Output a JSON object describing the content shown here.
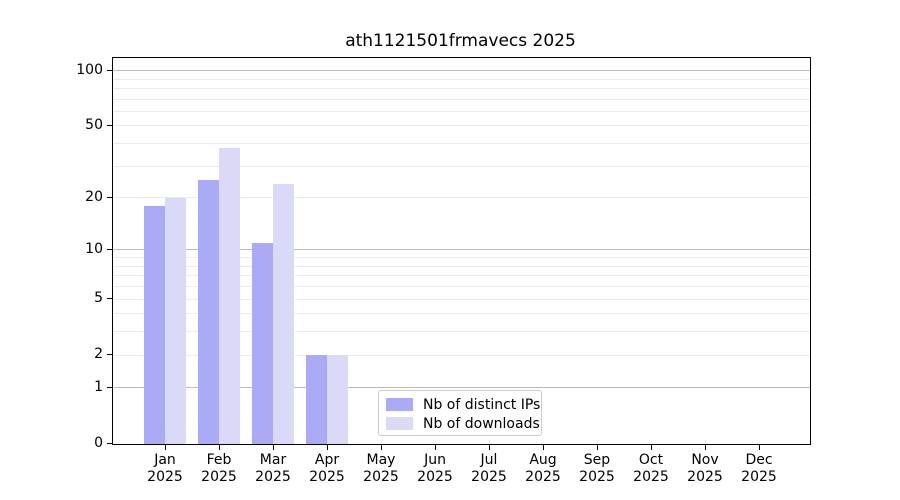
{
  "chart_data": {
    "type": "bar",
    "title": "ath1121501frmavecs 2025",
    "categories": [
      "Jan",
      "Feb",
      "Mar",
      "Apr",
      "May",
      "Jun",
      "Jul",
      "Aug",
      "Sep",
      "Oct",
      "Nov",
      "Dec"
    ],
    "x_tick_year": "2025",
    "series": [
      {
        "name": "Nb of distinct IPs",
        "color": "#aaaaf5",
        "values": [
          18,
          25,
          11,
          2,
          0,
          0,
          0,
          0,
          0,
          0,
          0,
          0
        ]
      },
      {
        "name": "Nb of downloads",
        "color": "#dadaf8",
        "values": [
          20,
          38,
          24,
          2,
          0,
          0,
          0,
          0,
          0,
          0,
          0,
          0
        ]
      }
    ],
    "xlabel": "",
    "ylabel": "",
    "y_axis": {
      "scale": "log1p",
      "ticks": [
        0,
        1,
        2,
        5,
        10,
        20,
        50,
        100
      ],
      "minor_gridlines": [
        2,
        3,
        4,
        5,
        6,
        7,
        8,
        9,
        20,
        30,
        40,
        50,
        60,
        70,
        80,
        90
      ],
      "major_gridlines": [
        1,
        10,
        100
      ],
      "ylim": [
        0,
        117
      ]
    },
    "grid": true,
    "legend_position": "lower center"
  },
  "colors": {
    "background": "#ffffff",
    "bar_distinct_ips": "#aaaaf5",
    "bar_downloads": "#dadaf8",
    "gridline_minor": "#ebebeb",
    "gridline_major": "#bdbdbd",
    "axis_spine": "#000000",
    "legend_border": "#cccccc",
    "text": "#000000"
  }
}
